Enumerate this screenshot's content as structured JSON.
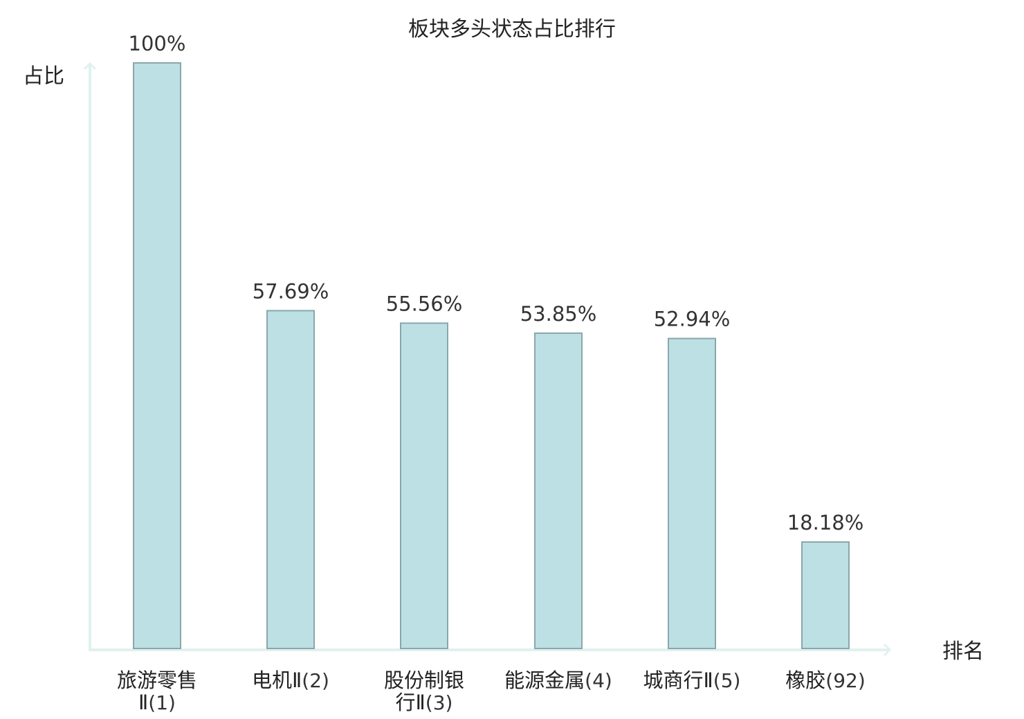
{
  "chart_data": {
    "type": "bar",
    "title": "板块多头状态占比排行",
    "ylabel": "占比",
    "xlabel": "排名",
    "ylim": [
      0,
      100
    ],
    "grid": false,
    "categories": [
      {
        "name": "旅游零售Ⅱ",
        "rank": "(1)",
        "display": "旅游零售Ⅱ(1)",
        "highlight": false
      },
      {
        "name": "电机Ⅱ",
        "rank": "(2)",
        "display": "电机Ⅱ(2)",
        "highlight": false
      },
      {
        "name": "股份制银行Ⅱ",
        "rank": "(3)",
        "display": "股份制银行Ⅱ(3)",
        "highlight": false
      },
      {
        "name": "能源金属",
        "rank": "(4)",
        "display": "能源金属(4)",
        "highlight": false
      },
      {
        "name": "城商行Ⅱ",
        "rank": "(5)",
        "display": "城商行Ⅱ(5)",
        "highlight": false
      },
      {
        "name": "橡胶",
        "rank": "(92)",
        "display": "橡胶(92)",
        "highlight": true
      }
    ],
    "values": [
      100,
      57.69,
      55.56,
      53.85,
      52.94,
      18.18
    ],
    "data_labels": [
      "100%",
      "57.69%",
      "55.56%",
      "53.85%",
      "52.94%",
      "18.18%"
    ]
  },
  "colors": {
    "bar_fill": "#bce0e3",
    "bar_stroke": "#8aa6ab",
    "axis": "#e0f2f0",
    "text": "#222222",
    "value_text": "#333333",
    "highlight": "#e02020"
  }
}
